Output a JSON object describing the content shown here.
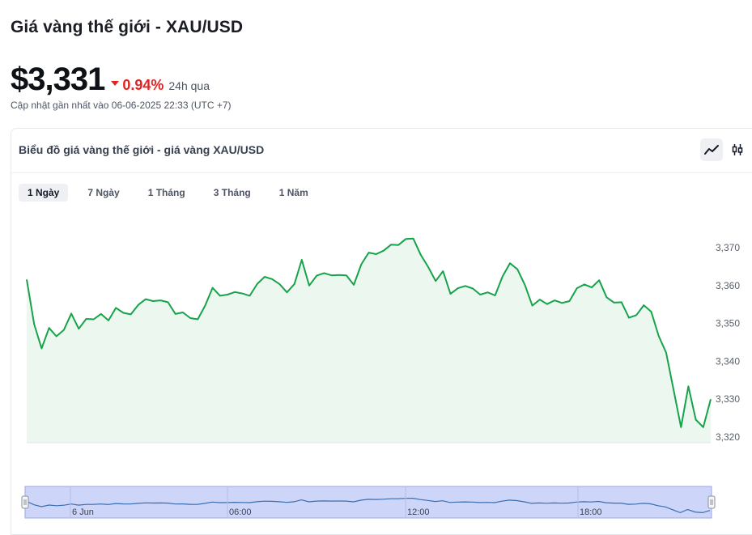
{
  "header": {
    "title": "Giá vàng thế giới - XAU/USD",
    "price": "$3,331",
    "change_pct": "0.94%",
    "change_period": "24h qua",
    "updated": "Cập nhật gần nhất vào 06-06-2025 22:33 (UTC +7)"
  },
  "card": {
    "title": "Biểu đồ giá vàng thế giới - giá vàng XAU/USD",
    "chart_types": [
      {
        "icon": "line-chart-icon",
        "active": true
      },
      {
        "icon": "candlestick-icon",
        "active": false
      }
    ],
    "tabs": [
      {
        "label": "1 Ngày",
        "active": true
      },
      {
        "label": "7 Ngày",
        "active": false
      },
      {
        "label": "1 Tháng",
        "active": false
      },
      {
        "label": "3 Tháng",
        "active": false
      },
      {
        "label": "1 Năm",
        "active": false
      }
    ]
  },
  "colors": {
    "line": "#16a34a",
    "area": "#ecf7ef",
    "down": "#e02424",
    "navigator_fill": "#cdd6f9",
    "navigator_border": "#9aa6e6"
  },
  "chart_data": {
    "type": "area",
    "ylim": [
      3318,
      3375
    ],
    "yticks": [
      3320,
      3330,
      3340,
      3350,
      3360,
      3370
    ],
    "ytick_labels": [
      "3,320",
      "3,330",
      "3,340",
      "3,350",
      "3,360",
      "3,370"
    ],
    "navigator_labels": [
      "6 Jun",
      "06:00",
      "12:00",
      "18:00"
    ],
    "values": [
      3361.6,
      3349.8,
      3343.4,
      3348.8,
      3346.6,
      3348.3,
      3352.6,
      3348.6,
      3351.2,
      3351.1,
      3352.5,
      3350.8,
      3354.1,
      3352.8,
      3352.4,
      3354.9,
      3356.4,
      3355.9,
      3356.1,
      3355.6,
      3352.5,
      3352.9,
      3351.4,
      3351.1,
      3354.7,
      3359.4,
      3357.3,
      3357.6,
      3358.3,
      3357.9,
      3357.3,
      3360.4,
      3362.3,
      3361.7,
      3360.4,
      3358.2,
      3360.4,
      3366.8,
      3360.0,
      3362.6,
      3363.3,
      3362.7,
      3362.8,
      3362.7,
      3360.2,
      3365.6,
      3368.7,
      3368.3,
      3369.2,
      3370.8,
      3370.7,
      3372.3,
      3372.4,
      3368.1,
      3364.9,
      3361.2,
      3363.8,
      3357.8,
      3359.3,
      3359.9,
      3359.2,
      3357.6,
      3358.2,
      3357.4,
      3362.4,
      3365.9,
      3364.3,
      3360.2,
      3354.7,
      3356.3,
      3355.1,
      3356.1,
      3355.4,
      3355.9,
      3359.3,
      3360.3,
      3359.5,
      3361.4,
      3356.9,
      3355.5,
      3355.6,
      3351.5,
      3352.2,
      3354.8,
      3353.1,
      3346.7,
      3342.3,
      3332.5,
      3322.6,
      3333.4,
      3324.6,
      3322.6,
      3330.0
    ]
  }
}
